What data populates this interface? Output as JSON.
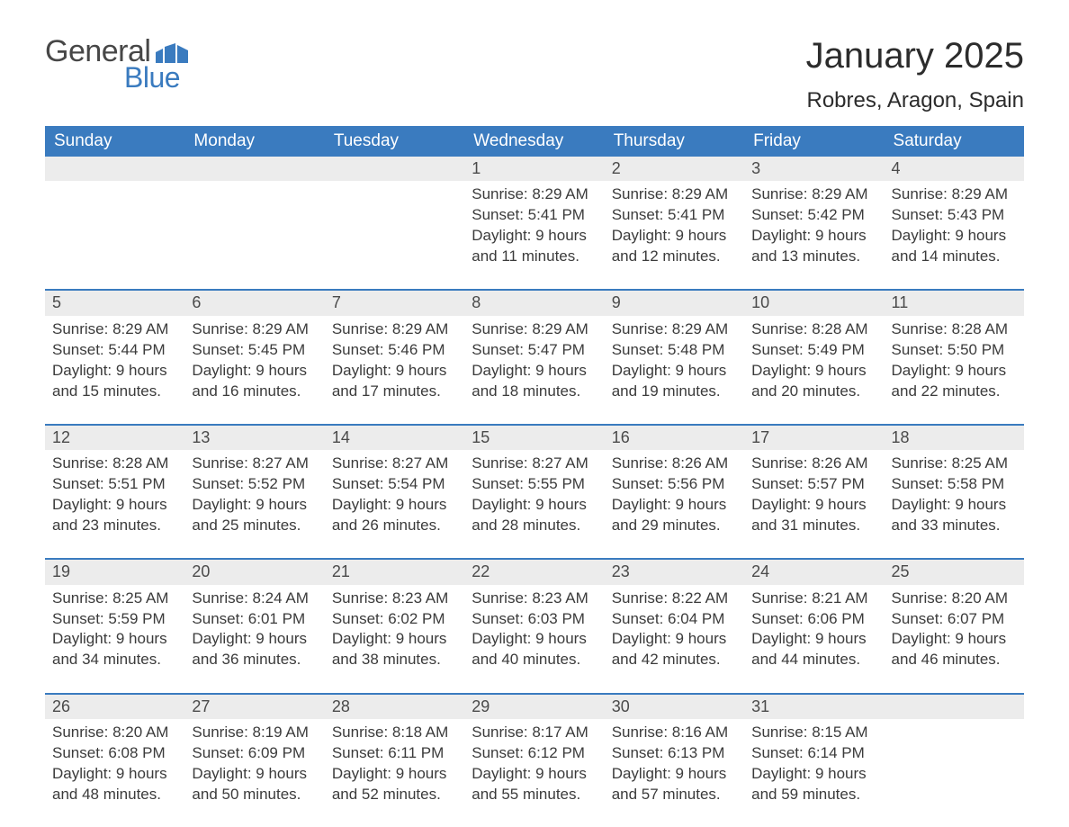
{
  "brand": {
    "word1": "General",
    "word2": "Blue",
    "flag_color": "#3a7bbf"
  },
  "title": "January 2025",
  "location": "Robres, Aragon, Spain",
  "colors": {
    "header_bg": "#3a7bbf",
    "header_text": "#ffffff",
    "daynum_bg": "#ececec",
    "text": "#3b3b3b",
    "rule": "#3a7bbf",
    "page_bg": "#ffffff"
  },
  "typography": {
    "title_fontsize_pt": 30,
    "location_fontsize_pt": 18,
    "dayheader_fontsize_pt": 14,
    "body_fontsize_pt": 13,
    "font_family": "Arial"
  },
  "day_headers": [
    "Sunday",
    "Monday",
    "Tuesday",
    "Wednesday",
    "Thursday",
    "Friday",
    "Saturday"
  ],
  "labels": {
    "sunrise": "Sunrise:",
    "sunset": "Sunset:",
    "daylight": "Daylight:"
  },
  "weeks": [
    [
      null,
      null,
      null,
      {
        "n": "1",
        "sunrise": "8:29 AM",
        "sunset": "5:41 PM",
        "daylight": "9 hours and 11 minutes."
      },
      {
        "n": "2",
        "sunrise": "8:29 AM",
        "sunset": "5:41 PM",
        "daylight": "9 hours and 12 minutes."
      },
      {
        "n": "3",
        "sunrise": "8:29 AM",
        "sunset": "5:42 PM",
        "daylight": "9 hours and 13 minutes."
      },
      {
        "n": "4",
        "sunrise": "8:29 AM",
        "sunset": "5:43 PM",
        "daylight": "9 hours and 14 minutes."
      }
    ],
    [
      {
        "n": "5",
        "sunrise": "8:29 AM",
        "sunset": "5:44 PM",
        "daylight": "9 hours and 15 minutes."
      },
      {
        "n": "6",
        "sunrise": "8:29 AM",
        "sunset": "5:45 PM",
        "daylight": "9 hours and 16 minutes."
      },
      {
        "n": "7",
        "sunrise": "8:29 AM",
        "sunset": "5:46 PM",
        "daylight": "9 hours and 17 minutes."
      },
      {
        "n": "8",
        "sunrise": "8:29 AM",
        "sunset": "5:47 PM",
        "daylight": "9 hours and 18 minutes."
      },
      {
        "n": "9",
        "sunrise": "8:29 AM",
        "sunset": "5:48 PM",
        "daylight": "9 hours and 19 minutes."
      },
      {
        "n": "10",
        "sunrise": "8:28 AM",
        "sunset": "5:49 PM",
        "daylight": "9 hours and 20 minutes."
      },
      {
        "n": "11",
        "sunrise": "8:28 AM",
        "sunset": "5:50 PM",
        "daylight": "9 hours and 22 minutes."
      }
    ],
    [
      {
        "n": "12",
        "sunrise": "8:28 AM",
        "sunset": "5:51 PM",
        "daylight": "9 hours and 23 minutes."
      },
      {
        "n": "13",
        "sunrise": "8:27 AM",
        "sunset": "5:52 PM",
        "daylight": "9 hours and 25 minutes."
      },
      {
        "n": "14",
        "sunrise": "8:27 AM",
        "sunset": "5:54 PM",
        "daylight": "9 hours and 26 minutes."
      },
      {
        "n": "15",
        "sunrise": "8:27 AM",
        "sunset": "5:55 PM",
        "daylight": "9 hours and 28 minutes."
      },
      {
        "n": "16",
        "sunrise": "8:26 AM",
        "sunset": "5:56 PM",
        "daylight": "9 hours and 29 minutes."
      },
      {
        "n": "17",
        "sunrise": "8:26 AM",
        "sunset": "5:57 PM",
        "daylight": "9 hours and 31 minutes."
      },
      {
        "n": "18",
        "sunrise": "8:25 AM",
        "sunset": "5:58 PM",
        "daylight": "9 hours and 33 minutes."
      }
    ],
    [
      {
        "n": "19",
        "sunrise": "8:25 AM",
        "sunset": "5:59 PM",
        "daylight": "9 hours and 34 minutes."
      },
      {
        "n": "20",
        "sunrise": "8:24 AM",
        "sunset": "6:01 PM",
        "daylight": "9 hours and 36 minutes."
      },
      {
        "n": "21",
        "sunrise": "8:23 AM",
        "sunset": "6:02 PM",
        "daylight": "9 hours and 38 minutes."
      },
      {
        "n": "22",
        "sunrise": "8:23 AM",
        "sunset": "6:03 PM",
        "daylight": "9 hours and 40 minutes."
      },
      {
        "n": "23",
        "sunrise": "8:22 AM",
        "sunset": "6:04 PM",
        "daylight": "9 hours and 42 minutes."
      },
      {
        "n": "24",
        "sunrise": "8:21 AM",
        "sunset": "6:06 PM",
        "daylight": "9 hours and 44 minutes."
      },
      {
        "n": "25",
        "sunrise": "8:20 AM",
        "sunset": "6:07 PM",
        "daylight": "9 hours and 46 minutes."
      }
    ],
    [
      {
        "n": "26",
        "sunrise": "8:20 AM",
        "sunset": "6:08 PM",
        "daylight": "9 hours and 48 minutes."
      },
      {
        "n": "27",
        "sunrise": "8:19 AM",
        "sunset": "6:09 PM",
        "daylight": "9 hours and 50 minutes."
      },
      {
        "n": "28",
        "sunrise": "8:18 AM",
        "sunset": "6:11 PM",
        "daylight": "9 hours and 52 minutes."
      },
      {
        "n": "29",
        "sunrise": "8:17 AM",
        "sunset": "6:12 PM",
        "daylight": "9 hours and 55 minutes."
      },
      {
        "n": "30",
        "sunrise": "8:16 AM",
        "sunset": "6:13 PM",
        "daylight": "9 hours and 57 minutes."
      },
      {
        "n": "31",
        "sunrise": "8:15 AM",
        "sunset": "6:14 PM",
        "daylight": "9 hours and 59 minutes."
      },
      null
    ]
  ]
}
